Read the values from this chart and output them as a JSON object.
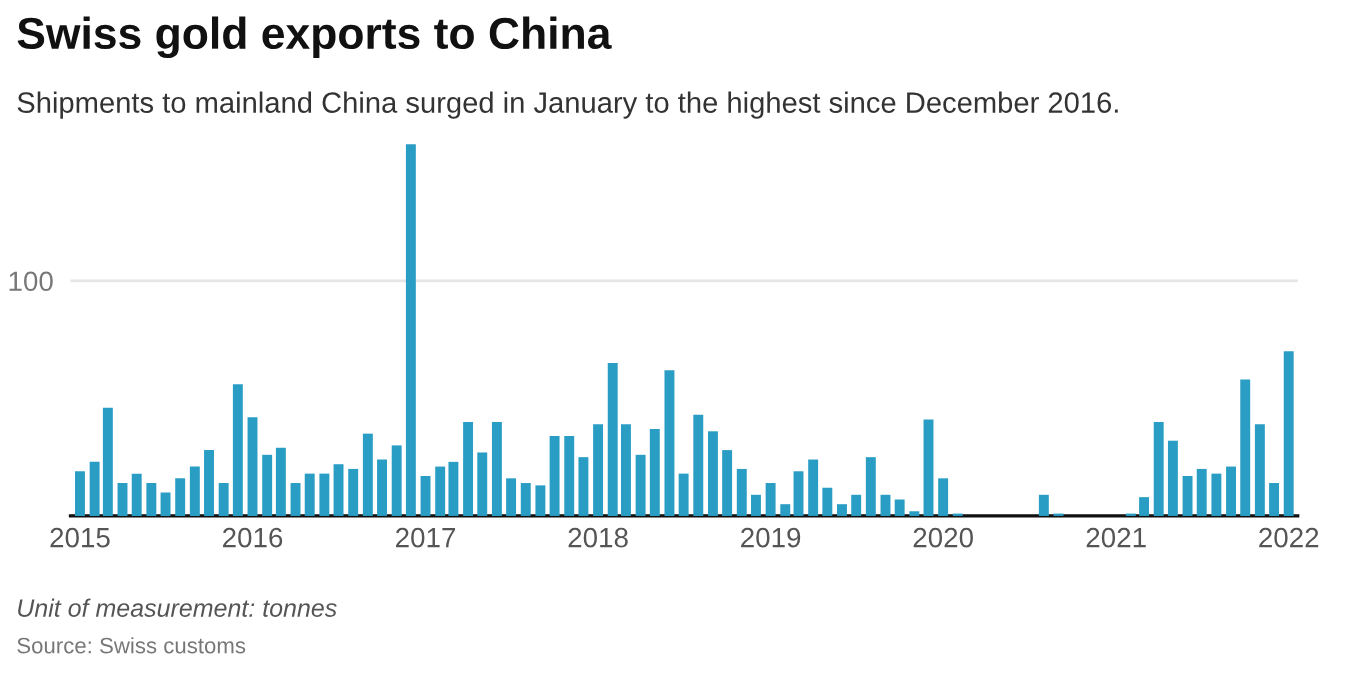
{
  "chart_data": {
    "type": "bar",
    "title": "Swiss gold exports to China",
    "subtitle": "Shipments to mainland China surged in January to the highest since December 2016.",
    "color": "#2a9dc4",
    "x": [
      "2015-01",
      "2015-02",
      "2015-03",
      "2015-04",
      "2015-05",
      "2015-06",
      "2015-07",
      "2015-08",
      "2015-09",
      "2015-10",
      "2015-11",
      "2015-12",
      "2016-01",
      "2016-02",
      "2016-03",
      "2016-04",
      "2016-05",
      "2016-06",
      "2016-07",
      "2016-08",
      "2016-09",
      "2016-10",
      "2016-11",
      "2016-12",
      "2017-01",
      "2017-02",
      "2017-03",
      "2017-04",
      "2017-05",
      "2017-06",
      "2017-07",
      "2017-08",
      "2017-09",
      "2017-10",
      "2017-11",
      "2017-12",
      "2018-01",
      "2018-02",
      "2018-03",
      "2018-04",
      "2018-05",
      "2018-06",
      "2018-07",
      "2018-08",
      "2018-09",
      "2018-10",
      "2018-11",
      "2018-12",
      "2019-01",
      "2019-02",
      "2019-03",
      "2019-04",
      "2019-05",
      "2019-06",
      "2019-07",
      "2019-08",
      "2019-09",
      "2019-10",
      "2019-11",
      "2019-12",
      "2020-01",
      "2020-02",
      "2020-03",
      "2020-04",
      "2020-05",
      "2020-06",
      "2020-07",
      "2020-08",
      "2020-09",
      "2020-10",
      "2020-11",
      "2020-12",
      "2021-01",
      "2021-02",
      "2021-03",
      "2021-04",
      "2021-05",
      "2021-06",
      "2021-07",
      "2021-08",
      "2021-09",
      "2021-10",
      "2021-11",
      "2021-12",
      "2022-01"
    ],
    "values": [
      19,
      23,
      46,
      14,
      18,
      14,
      10,
      16,
      21,
      28,
      14,
      56,
      42,
      26,
      29,
      14,
      18,
      18,
      22,
      20,
      35,
      24,
      30,
      158,
      17,
      21,
      23,
      40,
      27,
      40,
      16,
      14,
      13,
      34,
      34,
      25,
      39,
      65,
      39,
      26,
      37,
      62,
      18,
      43,
      36,
      28,
      20,
      9,
      14,
      5,
      19,
      24,
      12,
      5,
      9,
      25,
      9,
      7,
      2,
      41,
      16,
      1,
      0,
      0,
      0,
      0,
      0,
      9,
      1,
      0,
      0,
      0,
      0,
      1,
      8,
      40,
      32,
      17,
      20,
      18,
      21,
      58,
      39,
      14,
      70
    ],
    "xlim": [
      "2014-12-12",
      "2022-01-20"
    ],
    "xticks": [
      {
        "value": "2015-01",
        "label": "2015"
      },
      {
        "value": "2016-01",
        "label": "2016"
      },
      {
        "value": "2017-01",
        "label": "2017"
      },
      {
        "value": "2018-01",
        "label": "2018"
      },
      {
        "value": "2019-01",
        "label": "2019"
      },
      {
        "value": "2020-01",
        "label": "2020"
      },
      {
        "value": "2021-01",
        "label": "2021"
      },
      {
        "value": "2022-01",
        "label": "2022"
      }
    ],
    "ylim": [
      0,
      160
    ],
    "yticks": [
      {
        "value": 0,
        "label": null
      },
      100
    ],
    "grid": "y",
    "annotations": [
      "Unit of measurement: tonnes",
      "Source: Swiss customs"
    ]
  }
}
